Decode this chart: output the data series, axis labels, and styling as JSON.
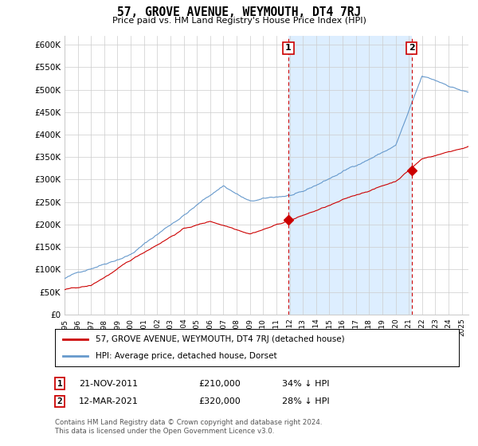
{
  "title": "57, GROVE AVENUE, WEYMOUTH, DT4 7RJ",
  "subtitle": "Price paid vs. HM Land Registry's House Price Index (HPI)",
  "ylabel_ticks": [
    "£0",
    "£50K",
    "£100K",
    "£150K",
    "£200K",
    "£250K",
    "£300K",
    "£350K",
    "£400K",
    "£450K",
    "£500K",
    "£550K",
    "£600K"
  ],
  "ytick_values": [
    0,
    50000,
    100000,
    150000,
    200000,
    250000,
    300000,
    350000,
    400000,
    450000,
    500000,
    550000,
    600000
  ],
  "ylim": [
    0,
    620000
  ],
  "xlim_start": 1995.0,
  "xlim_end": 2025.5,
  "xtick_labels": [
    "1995",
    "1996",
    "1997",
    "1998",
    "1999",
    "2000",
    "2001",
    "2002",
    "2003",
    "2004",
    "2005",
    "2006",
    "2007",
    "2008",
    "2009",
    "2010",
    "2011",
    "2012",
    "2013",
    "2014",
    "2015",
    "2016",
    "2017",
    "2018",
    "2019",
    "2020",
    "2021",
    "2022",
    "2023",
    "2024",
    "2025"
  ],
  "sale1_x": 2011.9,
  "sale1_y": 210000,
  "sale2_x": 2021.2,
  "sale2_y": 320000,
  "line_color_property": "#cc0000",
  "line_color_hpi": "#6699cc",
  "shade_color": "#ddeeff",
  "background_color": "#ffffff",
  "grid_color": "#cccccc",
  "legend_property": "57, GROVE AVENUE, WEYMOUTH, DT4 7RJ (detached house)",
  "legend_hpi": "HPI: Average price, detached house, Dorset",
  "table_row1": [
    "1",
    "21-NOV-2011",
    "£210,000",
    "34% ↓ HPI"
  ],
  "table_row2": [
    "2",
    "12-MAR-2021",
    "£320,000",
    "28% ↓ HPI"
  ],
  "footer": "Contains HM Land Registry data © Crown copyright and database right 2024.\nThis data is licensed under the Open Government Licence v3.0."
}
